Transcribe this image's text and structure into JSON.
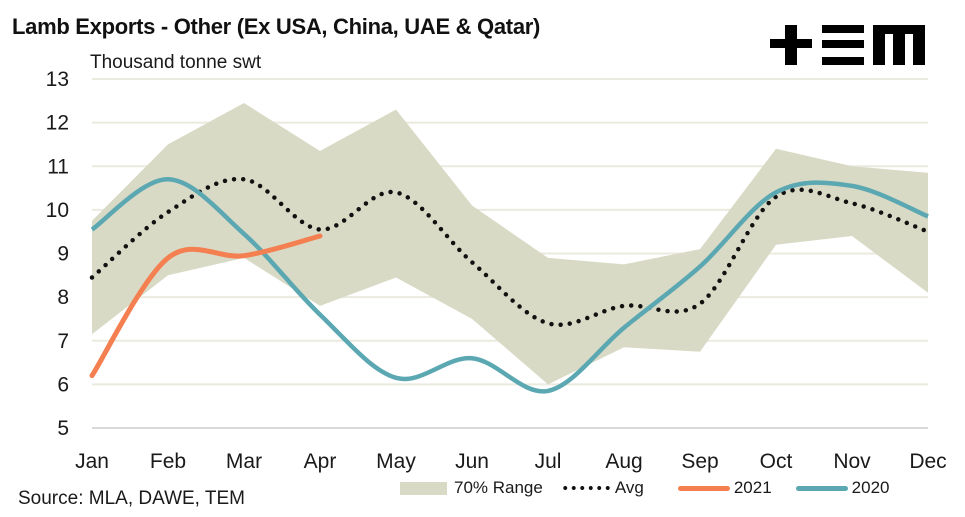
{
  "header": {
    "title": "Lamb Exports - Other (Ex USA, China, UAE & Qatar)",
    "logo_text": "TEM"
  },
  "footer": {
    "source": "Source: MLA, DAWE, TEM"
  },
  "colors": {
    "range": "#d9dac5",
    "avg": "#111111",
    "series_2021": "#f47f50",
    "series_2020": "#5ba8b2",
    "gridline": "#ebeadf",
    "baseline": "#d9d9d9"
  },
  "chart_data": {
    "type": "line",
    "title": "Lamb Exports - Other (Ex USA, China, UAE & Qatar)",
    "ylabel": "Thousand tonne swt",
    "xlabel": "",
    "categories": [
      "Jan",
      "Feb",
      "Mar",
      "Apr",
      "May",
      "Jun",
      "Jul",
      "Aug",
      "Sep",
      "Oct",
      "Nov",
      "Dec"
    ],
    "ylim": [
      5,
      13
    ],
    "yticks": [
      5,
      6,
      7,
      8,
      9,
      10,
      11,
      12,
      13
    ],
    "grid": true,
    "legend_position": "bottom-right",
    "range": {
      "name": "70% Range",
      "upper": [
        9.75,
        11.5,
        12.45,
        11.35,
        12.3,
        10.1,
        8.9,
        8.75,
        9.1,
        11.4,
        11.0,
        10.85
      ],
      "lower": [
        7.15,
        8.5,
        8.9,
        7.8,
        8.45,
        7.5,
        6.0,
        6.85,
        6.75,
        9.2,
        9.4,
        8.1
      ]
    },
    "series": [
      {
        "name": "Avg",
        "style": "dotted",
        "values": [
          8.45,
          9.95,
          10.7,
          9.55,
          10.4,
          8.8,
          7.4,
          7.8,
          7.85,
          10.3,
          10.15,
          9.5
        ]
      },
      {
        "name": "2021",
        "style": "solid",
        "values": [
          6.2,
          8.9,
          8.95,
          9.4,
          null,
          null,
          null,
          null,
          null,
          null,
          null,
          null
        ]
      },
      {
        "name": "2020",
        "style": "solid",
        "values": [
          9.55,
          10.7,
          9.45,
          7.6,
          6.15,
          6.6,
          5.85,
          7.3,
          8.7,
          10.4,
          10.55,
          9.85
        ]
      }
    ]
  }
}
